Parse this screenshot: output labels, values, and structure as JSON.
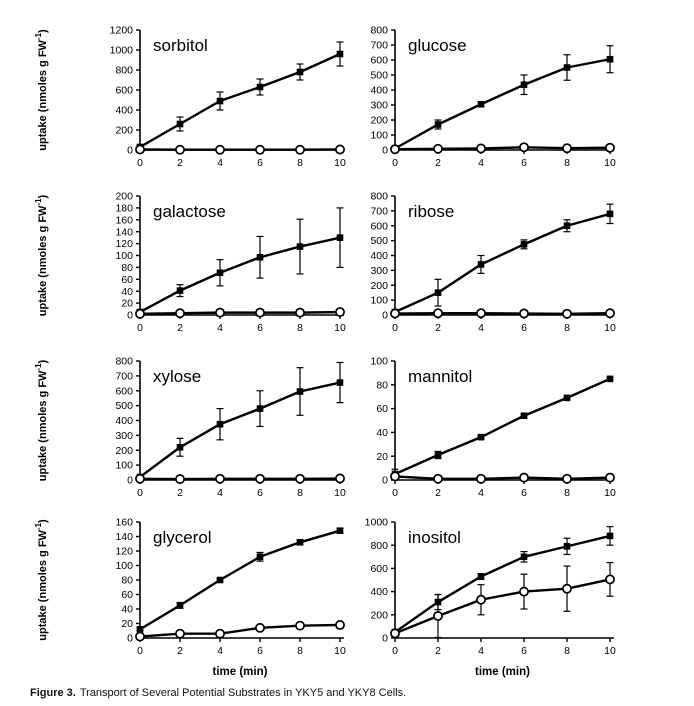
{
  "caption": {
    "label": "Figure 3.",
    "text": "Transport of Several Potential Substrates in YKY5 and YKY8 Cells."
  },
  "axis": {
    "x_label": "time (min)",
    "y_label_main": "uptake (nmoles g FW",
    "y_label_sup": "-1",
    "y_label_close": ")",
    "x_ticks": [
      0,
      2,
      4,
      6,
      8,
      10
    ],
    "xlim": [
      0,
      10
    ]
  },
  "colors": {
    "line": "#000000",
    "marker_fill": "#000000",
    "open_marker_fill": "#ffffff",
    "background": "#ffffff"
  },
  "chart_data": [
    {
      "type": "line",
      "title": "sorbitol",
      "x": [
        0,
        2,
        4,
        6,
        8,
        10
      ],
      "ylim": [
        0,
        1200
      ],
      "ytick_step": 200,
      "series": [
        {
          "name": "filled-square",
          "marker": "square-filled",
          "values": [
            30,
            260,
            490,
            630,
            780,
            960
          ],
          "errors": [
            15,
            70,
            90,
            80,
            80,
            120
          ]
        },
        {
          "name": "open-circle",
          "marker": "circle-open",
          "values": [
            5,
            3,
            3,
            3,
            3,
            5
          ],
          "errors": [
            0,
            0,
            0,
            0,
            0,
            0
          ]
        }
      ]
    },
    {
      "type": "line",
      "title": "glucose",
      "x": [
        0,
        2,
        4,
        6,
        8,
        10
      ],
      "ylim": [
        0,
        800
      ],
      "ytick_step": 100,
      "series": [
        {
          "name": "filled-square",
          "marker": "square-filled",
          "values": [
            10,
            170,
            305,
            435,
            550,
            605
          ],
          "errors": [
            5,
            30,
            15,
            65,
            85,
            90
          ]
        },
        {
          "name": "open-circle",
          "marker": "circle-open",
          "values": [
            5,
            8,
            10,
            18,
            12,
            15
          ],
          "errors": [
            0,
            0,
            0,
            0,
            0,
            0
          ]
        }
      ]
    },
    {
      "type": "line",
      "title": "galactose",
      "x": [
        0,
        2,
        4,
        6,
        8,
        10
      ],
      "ylim": [
        0,
        200
      ],
      "ytick_step": 20,
      "series": [
        {
          "name": "filled-square",
          "marker": "square-filled",
          "values": [
            5,
            41,
            71,
            97,
            115,
            130
          ],
          "errors": [
            3,
            10,
            22,
            35,
            46,
            50
          ]
        },
        {
          "name": "open-circle",
          "marker": "circle-open",
          "values": [
            2,
            3,
            4,
            4,
            4,
            5
          ],
          "errors": [
            0,
            0,
            0,
            0,
            0,
            0
          ]
        }
      ]
    },
    {
      "type": "line",
      "title": "ribose",
      "x": [
        0,
        2,
        4,
        6,
        8,
        10
      ],
      "ylim": [
        0,
        800
      ],
      "ytick_step": 100,
      "series": [
        {
          "name": "filled-square",
          "marker": "square-filled",
          "values": [
            20,
            150,
            340,
            475,
            600,
            680
          ],
          "errors": [
            10,
            90,
            60,
            30,
            40,
            65
          ]
        },
        {
          "name": "open-circle",
          "marker": "circle-open",
          "values": [
            10,
            12,
            12,
            10,
            8,
            12
          ],
          "errors": [
            0,
            0,
            0,
            0,
            0,
            0
          ]
        }
      ]
    },
    {
      "type": "line",
      "title": "xylose",
      "x": [
        0,
        2,
        4,
        6,
        8,
        10
      ],
      "ylim": [
        0,
        800
      ],
      "ytick_step": 100,
      "series": [
        {
          "name": "filled-square",
          "marker": "square-filled",
          "values": [
            20,
            220,
            375,
            480,
            595,
            655
          ],
          "errors": [
            10,
            60,
            105,
            120,
            160,
            135
          ]
        },
        {
          "name": "open-circle",
          "marker": "circle-open",
          "values": [
            8,
            6,
            8,
            8,
            8,
            10
          ],
          "errors": [
            0,
            0,
            0,
            0,
            0,
            0
          ]
        }
      ]
    },
    {
      "type": "line",
      "title": "mannitol",
      "x": [
        0,
        2,
        4,
        6,
        8,
        10
      ],
      "ylim": [
        0,
        100
      ],
      "ytick_step": 20,
      "series": [
        {
          "name": "filled-square",
          "marker": "square-filled",
          "values": [
            5,
            21,
            36,
            54,
            69,
            85
          ],
          "errors": [
            4,
            3,
            1,
            1,
            1,
            1
          ]
        },
        {
          "name": "open-circle",
          "marker": "circle-open",
          "values": [
            3,
            1,
            1,
            2,
            1,
            2
          ],
          "errors": [
            0,
            0,
            0,
            0,
            0,
            0
          ]
        }
      ]
    },
    {
      "type": "line",
      "title": "glycerol",
      "x": [
        0,
        2,
        4,
        6,
        8,
        10
      ],
      "ylim": [
        0,
        160
      ],
      "ytick_step": 20,
      "series": [
        {
          "name": "filled-square",
          "marker": "square-filled",
          "values": [
            12,
            45,
            80,
            112,
            132,
            148
          ],
          "errors": [
            2,
            4,
            2,
            6,
            3,
            3
          ]
        },
        {
          "name": "open-circle",
          "marker": "circle-open",
          "values": [
            2,
            6,
            6,
            14,
            17,
            18
          ],
          "errors": [
            1,
            1,
            4,
            2,
            2,
            3
          ]
        }
      ]
    },
    {
      "type": "line",
      "title": "inositol",
      "x": [
        0,
        2,
        4,
        6,
        8,
        10
      ],
      "ylim": [
        0,
        1000
      ],
      "ytick_step": 200,
      "series": [
        {
          "name": "filled-square",
          "marker": "square-filled",
          "values": [
            50,
            310,
            530,
            700,
            790,
            880
          ],
          "errors": [
            20,
            65,
            25,
            45,
            70,
            80
          ]
        },
        {
          "name": "open-circle",
          "marker": "circle-open",
          "values": [
            40,
            190,
            330,
            400,
            425,
            505
          ],
          "errors": [
            30,
            185,
            130,
            150,
            195,
            145
          ]
        }
      ]
    }
  ]
}
